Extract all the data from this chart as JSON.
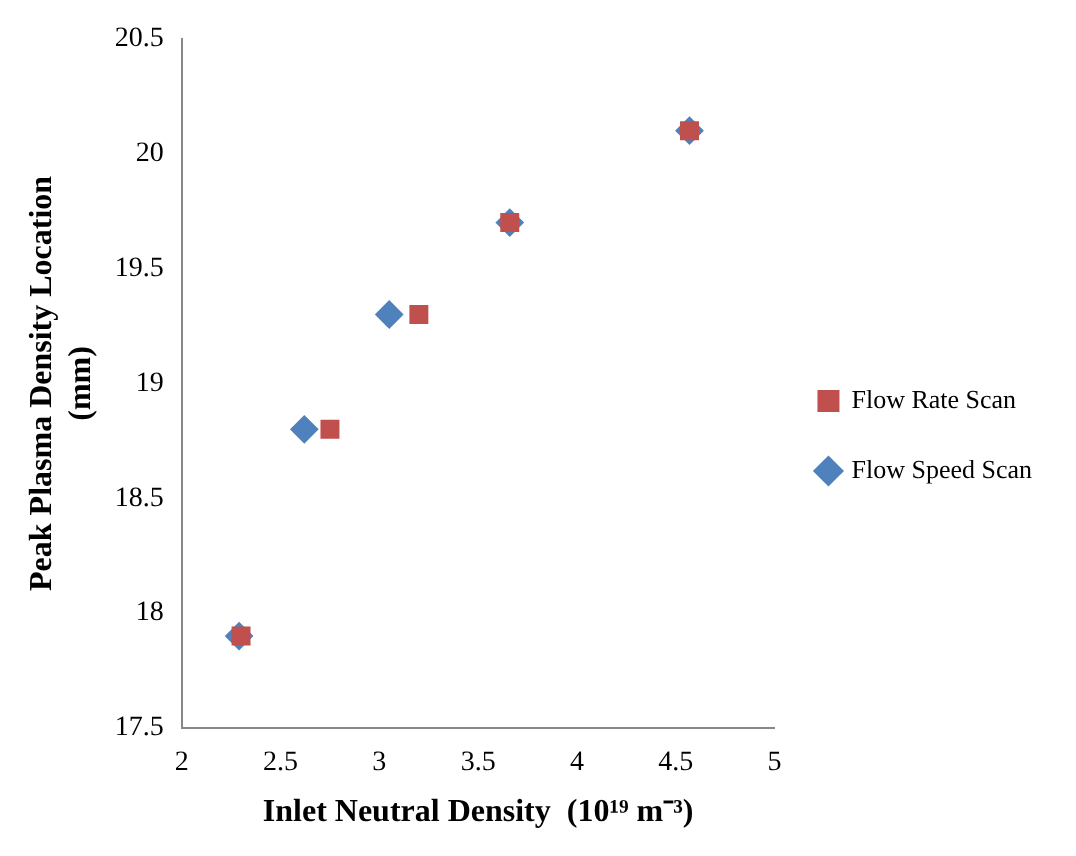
{
  "chart_data": {
    "type": "scatter",
    "xlabel": "Inlet Neutral Density  (10¹⁹ m⁻³)",
    "ylabel": "Peak Plasma Density Location (mm)",
    "xlim": [
      2,
      5
    ],
    "xticks": [
      2,
      2.5,
      3,
      3.5,
      4,
      4.5,
      5
    ],
    "ylim": [
      17.5,
      20.5
    ],
    "yticks": [
      17.5,
      18,
      18.5,
      19,
      19.5,
      20,
      20.5
    ],
    "grid": false,
    "legend": "right",
    "series": [
      {
        "name": "Flow Rate Scan",
        "color": "#c0504d",
        "marker": "square",
        "x": [
          2.3,
          2.75,
          3.2,
          3.66,
          4.57
        ],
        "values": [
          17.9,
          18.8,
          19.3,
          19.7,
          20.1
        ]
      },
      {
        "name": "Flow Speed Scan",
        "color": "#4f81bd",
        "marker": "diamond",
        "x": [
          2.29,
          2.62,
          3.05,
          3.66,
          4.57
        ],
        "values": [
          17.9,
          18.8,
          19.3,
          19.7,
          20.1
        ]
      }
    ]
  }
}
